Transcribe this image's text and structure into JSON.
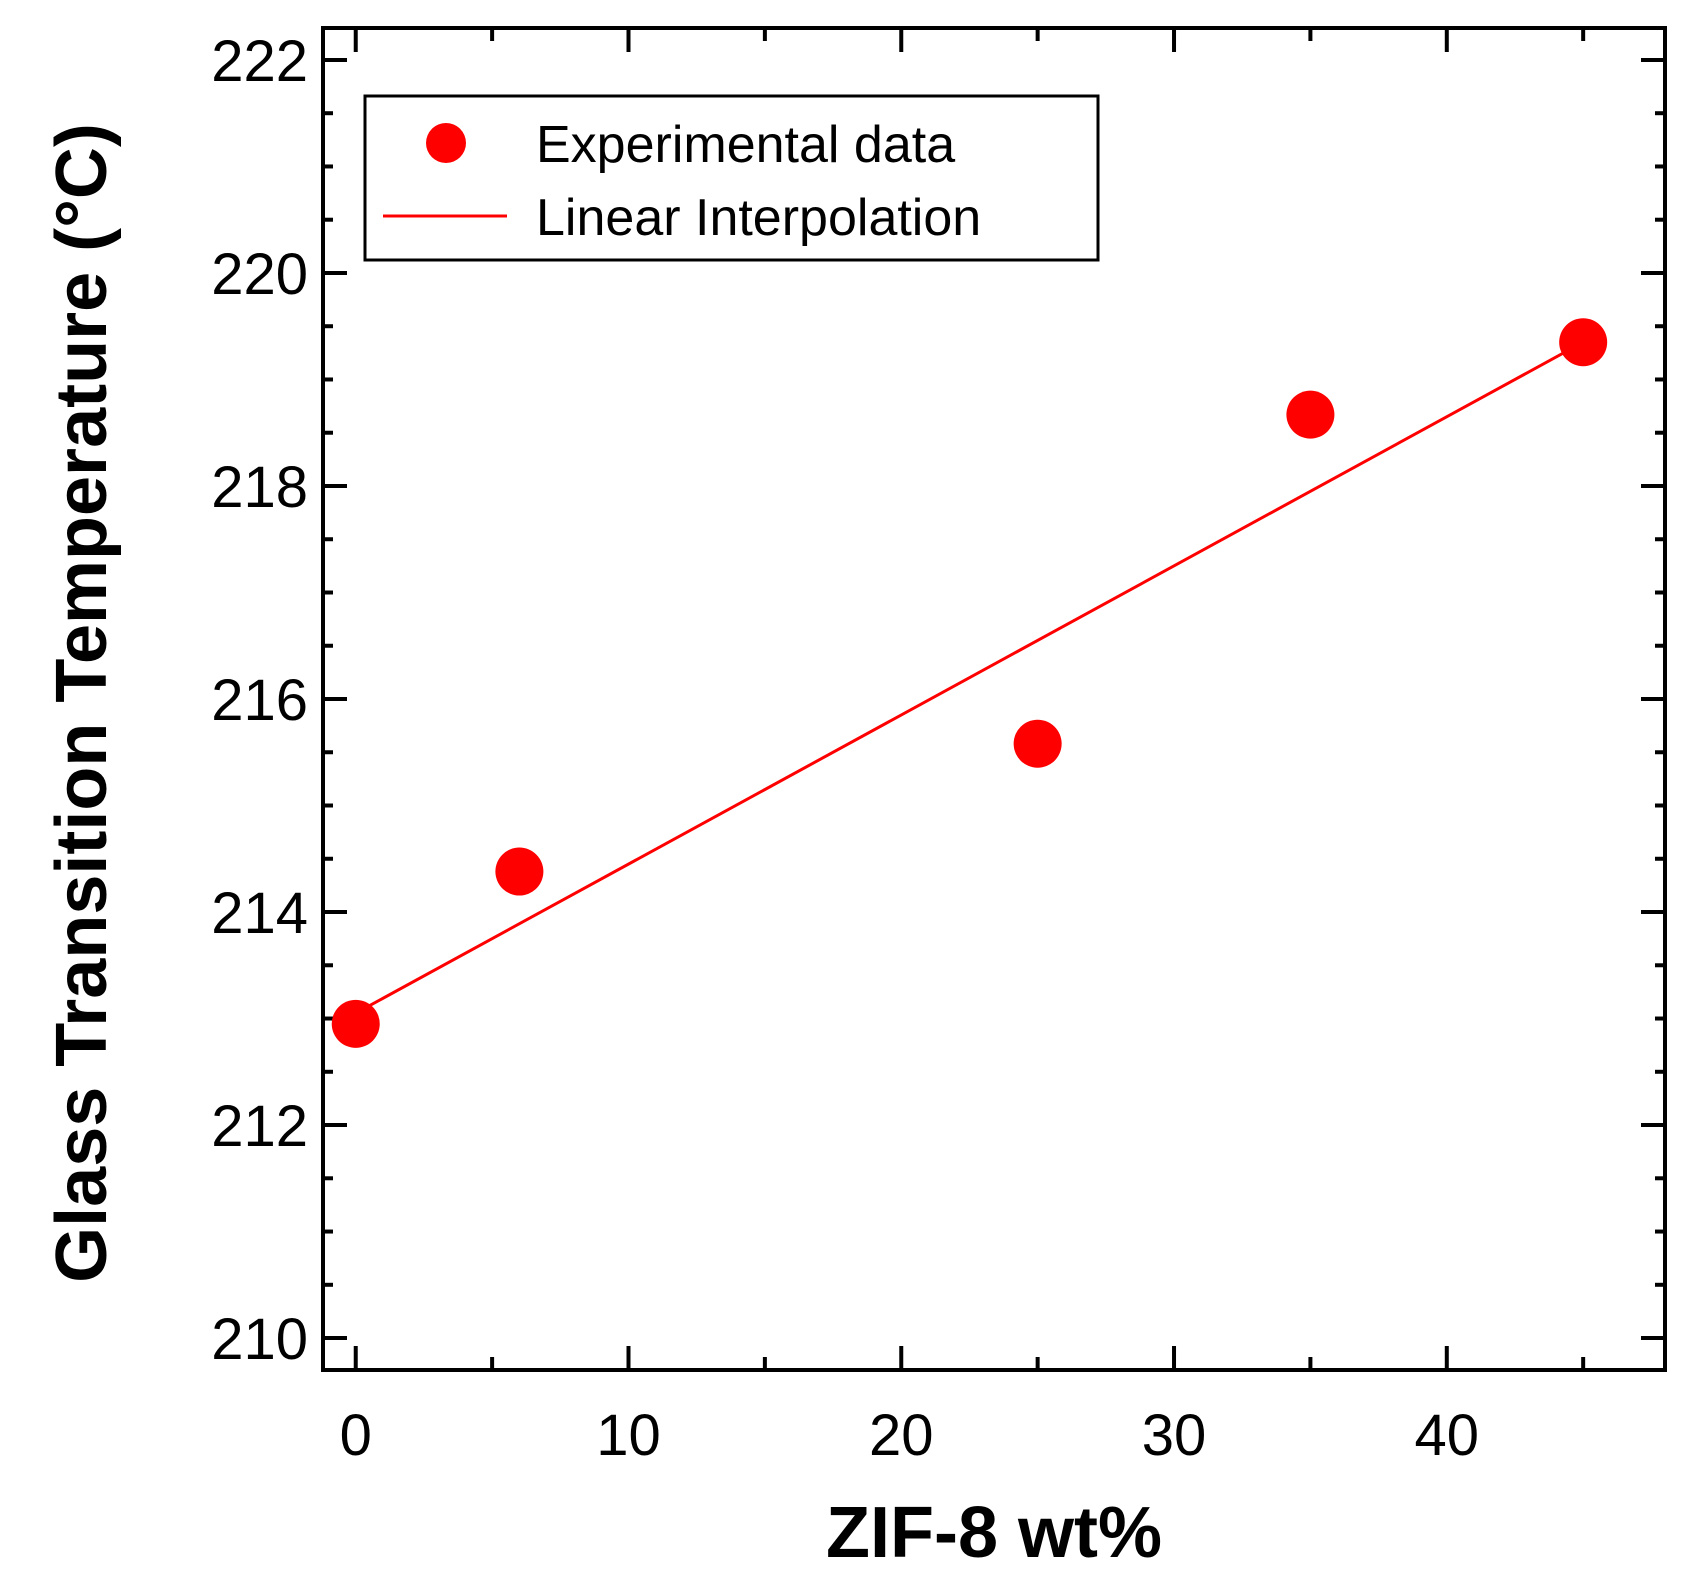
{
  "chart_data": {
    "type": "scatter",
    "title": "",
    "xlabel": "ZIF-8 wt%",
    "ylabel": "Glass Transition Temperature (°C)",
    "xlim": [
      -1.2,
      48
    ],
    "ylim": [
      209.7,
      222.3
    ],
    "x_ticks": [
      0,
      10,
      20,
      30,
      40
    ],
    "x_tick_labels": [
      "0",
      "10",
      "20",
      "30",
      "40"
    ],
    "y_ticks": [
      210,
      212,
      214,
      216,
      218,
      220,
      222
    ],
    "y_tick_labels": [
      "210",
      "212",
      "214",
      "216",
      "218",
      "220",
      "222"
    ],
    "series": [
      {
        "name": "Experimental data",
        "kind": "scatter",
        "color": "#ff0000",
        "x": [
          0,
          6,
          25,
          35,
          45
        ],
        "y": [
          212.95,
          214.38,
          215.58,
          218.67,
          219.35
        ]
      },
      {
        "name": "Linear Interpolation",
        "kind": "line",
        "color": "#ff0000",
        "x": [
          0,
          45
        ],
        "y": [
          213.05,
          219.35
        ]
      }
    ],
    "legend": {
      "position": "top-left",
      "entries": [
        "Experimental data",
        "Linear Interpolation"
      ]
    }
  }
}
